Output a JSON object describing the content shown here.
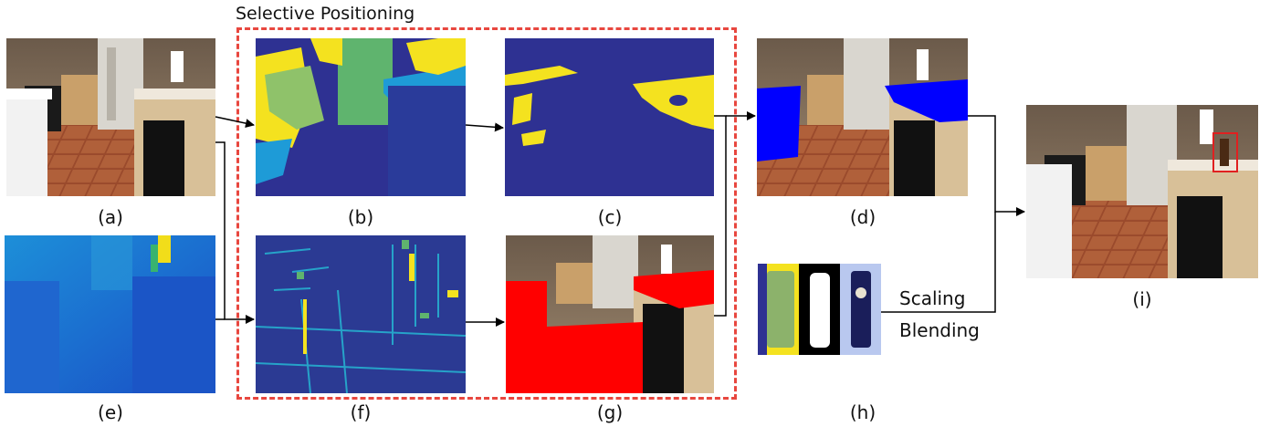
{
  "figure": {
    "section_title": "Selective Positioning",
    "labels": {
      "a": "(a)",
      "b": "(b)",
      "c": "(c)",
      "d": "(d)",
      "e": "(e)",
      "f": "(f)",
      "g": "(g)",
      "h": "(h)",
      "i": "(i)"
    },
    "operations": {
      "scaling": "Scaling",
      "blending": "Blending"
    },
    "colors": {
      "dash_box": "#e8473f",
      "seg_background": "#2e3192",
      "seg_yellow": "#f4e21f",
      "seg_green": "#5fb46e",
      "seg_cyan": "#1e9bd7",
      "highlight_blue": "#0000ff",
      "highlight_red": "#ff0000",
      "bbox_red": "#e02020"
    }
  }
}
